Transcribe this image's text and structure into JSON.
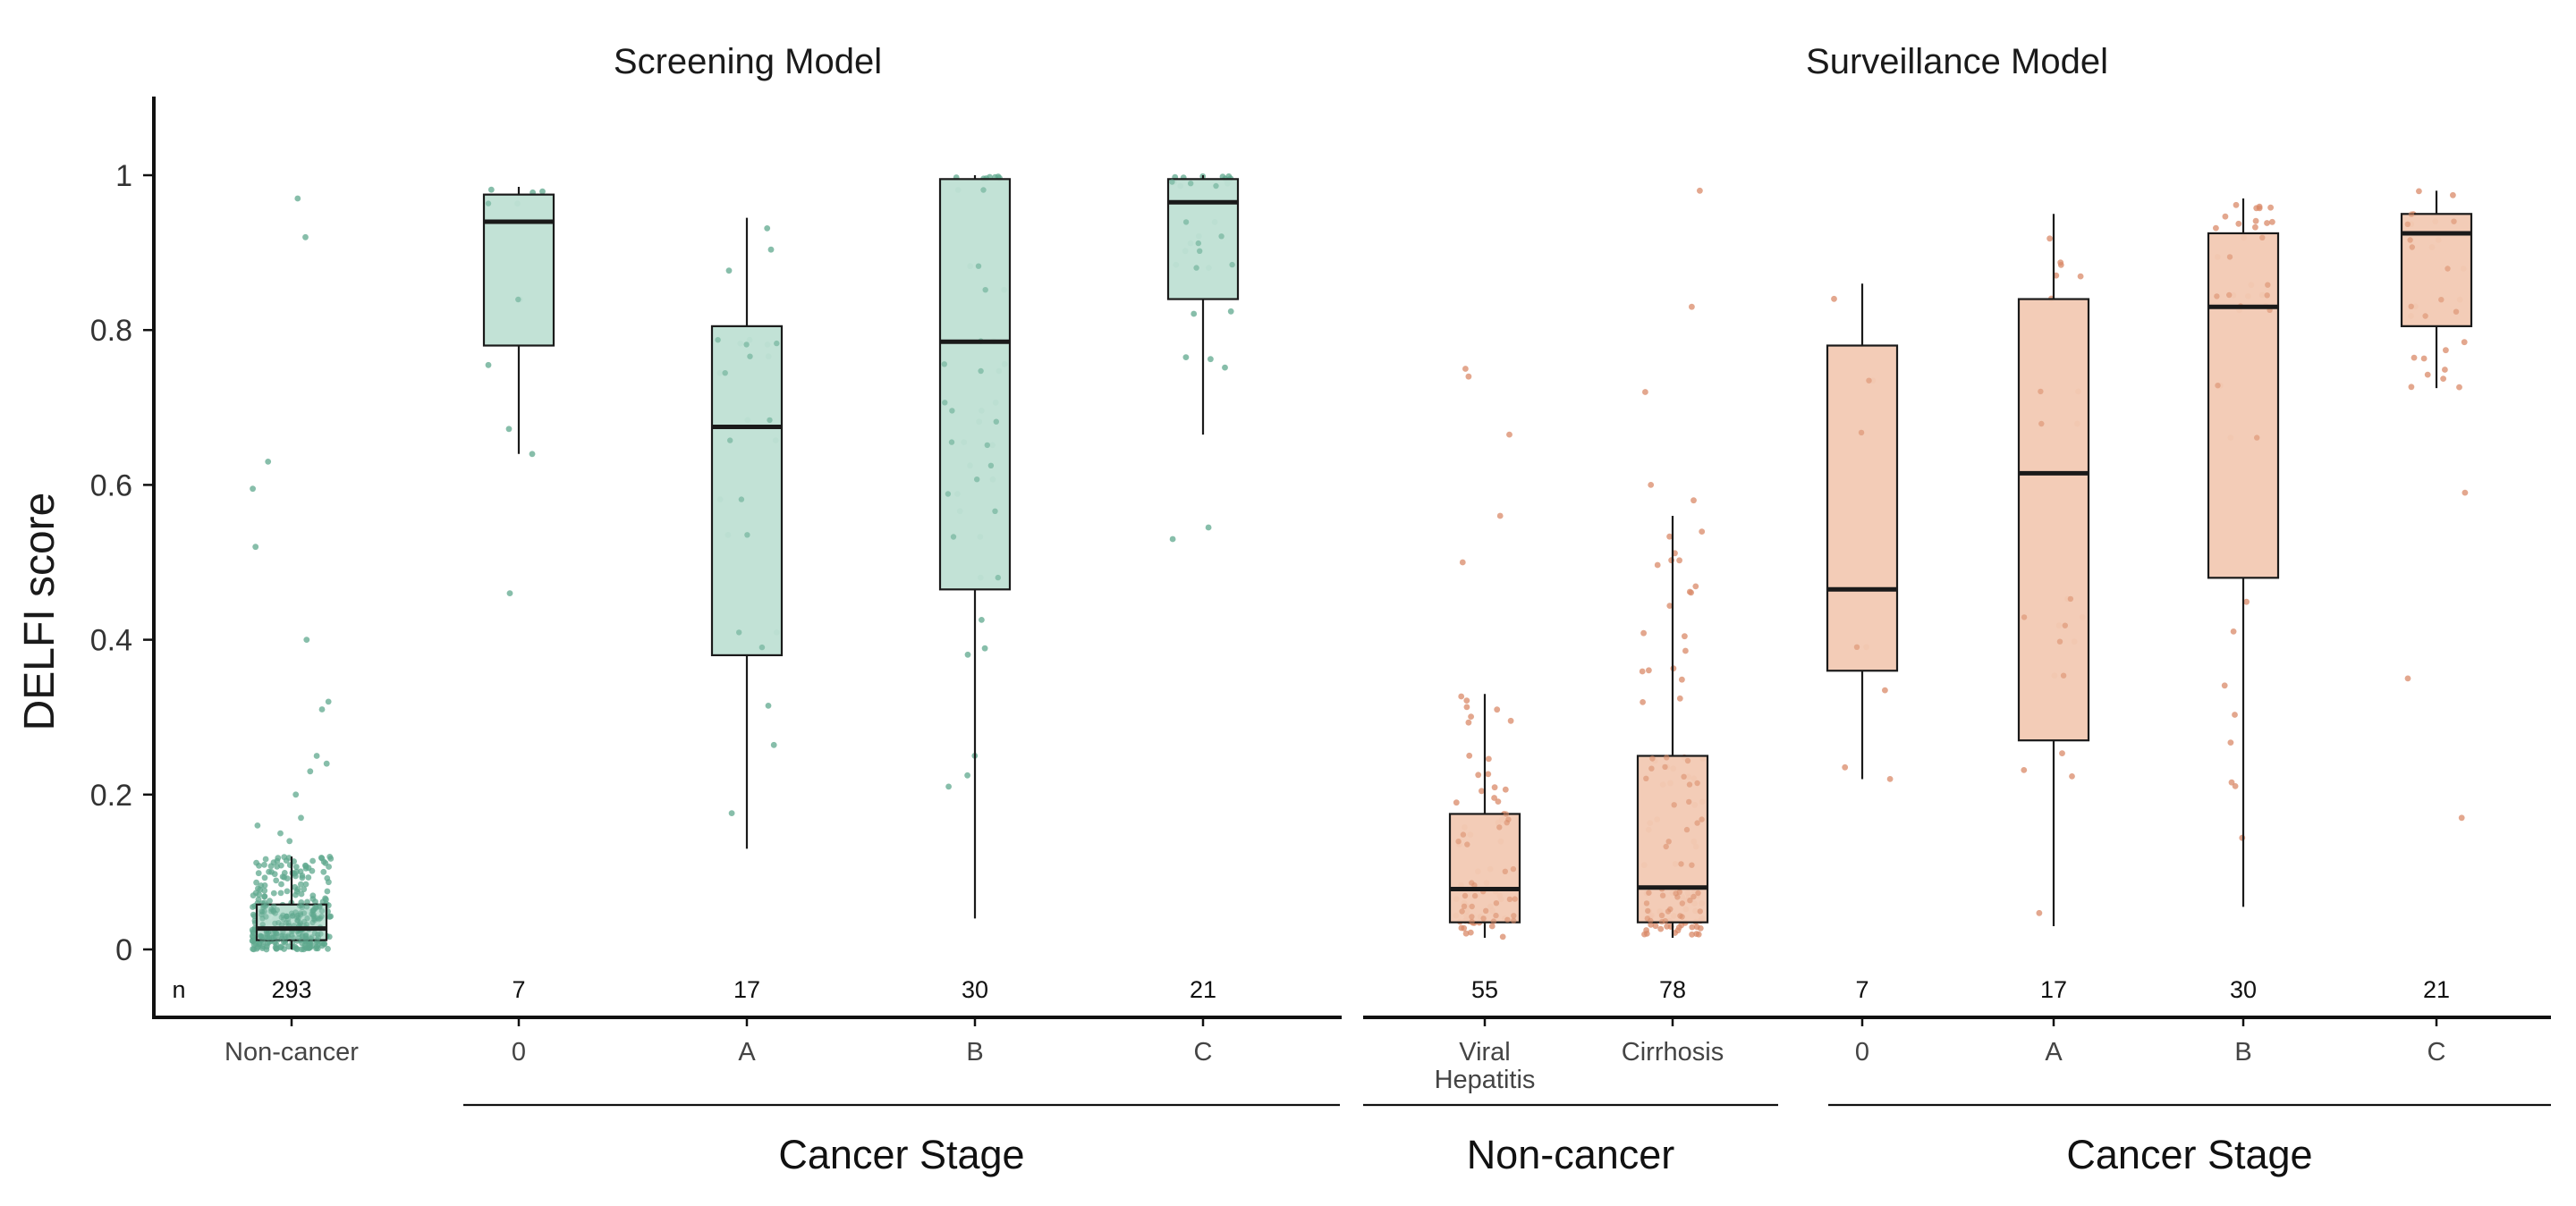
{
  "colors": {
    "screening_fill": "#bfe0d4",
    "screening_point": "#5fa88e",
    "surveillance_fill": "#f2c9b3",
    "surveillance_point": "#d98a68",
    "ink": "#1a1a1a"
  },
  "chart_data": {
    "type": "box",
    "ylabel": "DELFI score",
    "ylim": [
      0,
      1.1
    ],
    "yticks": [
      0,
      0.2,
      0.4,
      0.6,
      0.8,
      1
    ],
    "ytick_labels": [
      "0",
      "0.2",
      "0.4",
      "0.6",
      "0.8",
      "1"
    ],
    "grid": false,
    "n_label": "n",
    "panels": [
      {
        "title": "Screening Model",
        "fill": "#bfe0d4",
        "point": "#5fa88e",
        "groups": [
          {
            "label": "Non-cancer",
            "n": "293",
            "min": 0.0,
            "q1": 0.012,
            "median": 0.027,
            "q3": 0.058,
            "max": 0.12,
            "outliers": [
              0.97,
              0.92,
              0.63,
              0.595,
              0.52,
              0.4,
              0.32,
              0.31,
              0.25,
              0.24,
              0.23,
              0.2,
              0.17,
              0.16,
              0.15,
              0.14
            ]
          },
          {
            "label": "0",
            "n": "7",
            "min": 0.64,
            "q1": 0.78,
            "median": 0.94,
            "q3": 0.975,
            "max": 0.985,
            "outliers": [
              0.46,
              0.64
            ]
          },
          {
            "label": "A",
            "n": "17",
            "min": 0.13,
            "q1": 0.38,
            "median": 0.675,
            "q3": 0.805,
            "max": 0.945,
            "outliers": []
          },
          {
            "label": "B",
            "n": "30",
            "min": 0.04,
            "q1": 0.465,
            "median": 0.785,
            "q3": 0.995,
            "max": 1.0,
            "outliers": []
          },
          {
            "label": "C",
            "n": "21",
            "min": 0.665,
            "q1": 0.84,
            "median": 0.965,
            "q3": 0.995,
            "max": 1.0,
            "outliers": [
              0.545,
              0.53
            ]
          }
        ],
        "x_brackets": [
          {
            "label": "Cancer Stage",
            "from": 1,
            "to": 4
          }
        ]
      },
      {
        "title": "Surveillance Model",
        "fill": "#f2c9b3",
        "point": "#d98a68",
        "groups": [
          {
            "label": "Viral\nHepatitis",
            "label_lines": [
              "Viral",
              "Hepatitis"
            ],
            "n": "55",
            "min": 0.015,
            "q1": 0.035,
            "median": 0.078,
            "q3": 0.175,
            "max": 0.33,
            "outliers": [
              0.75,
              0.74,
              0.665,
              0.56,
              0.5
            ]
          },
          {
            "label": "Cirrhosis",
            "label_lines": [
              "Cirrhosis"
            ],
            "n": "78",
            "min": 0.015,
            "q1": 0.035,
            "median": 0.08,
            "q3": 0.25,
            "max": 0.56,
            "outliers": [
              0.98,
              0.83,
              0.72,
              0.6,
              0.58
            ]
          },
          {
            "label": "0",
            "label_lines": [
              "0"
            ],
            "n": "7",
            "min": 0.22,
            "q1": 0.36,
            "median": 0.465,
            "q3": 0.78,
            "max": 0.86,
            "outliers": []
          },
          {
            "label": "A",
            "label_lines": [
              "A"
            ],
            "n": "17",
            "min": 0.03,
            "q1": 0.27,
            "median": 0.615,
            "q3": 0.84,
            "max": 0.95,
            "outliers": []
          },
          {
            "label": "B",
            "label_lines": [
              "B"
            ],
            "n": "30",
            "min": 0.055,
            "q1": 0.48,
            "median": 0.83,
            "q3": 0.925,
            "max": 0.97,
            "outliers": []
          },
          {
            "label": "C",
            "label_lines": [
              "C"
            ],
            "n": "21",
            "min": 0.725,
            "q1": 0.805,
            "median": 0.925,
            "q3": 0.95,
            "max": 0.98,
            "outliers": [
              0.59,
              0.35,
              0.17
            ]
          }
        ],
        "x_brackets": [
          {
            "label": "Non-cancer",
            "from": 0,
            "to": 1
          },
          {
            "label": "Cancer Stage",
            "from": 2,
            "to": 5
          }
        ]
      }
    ]
  }
}
